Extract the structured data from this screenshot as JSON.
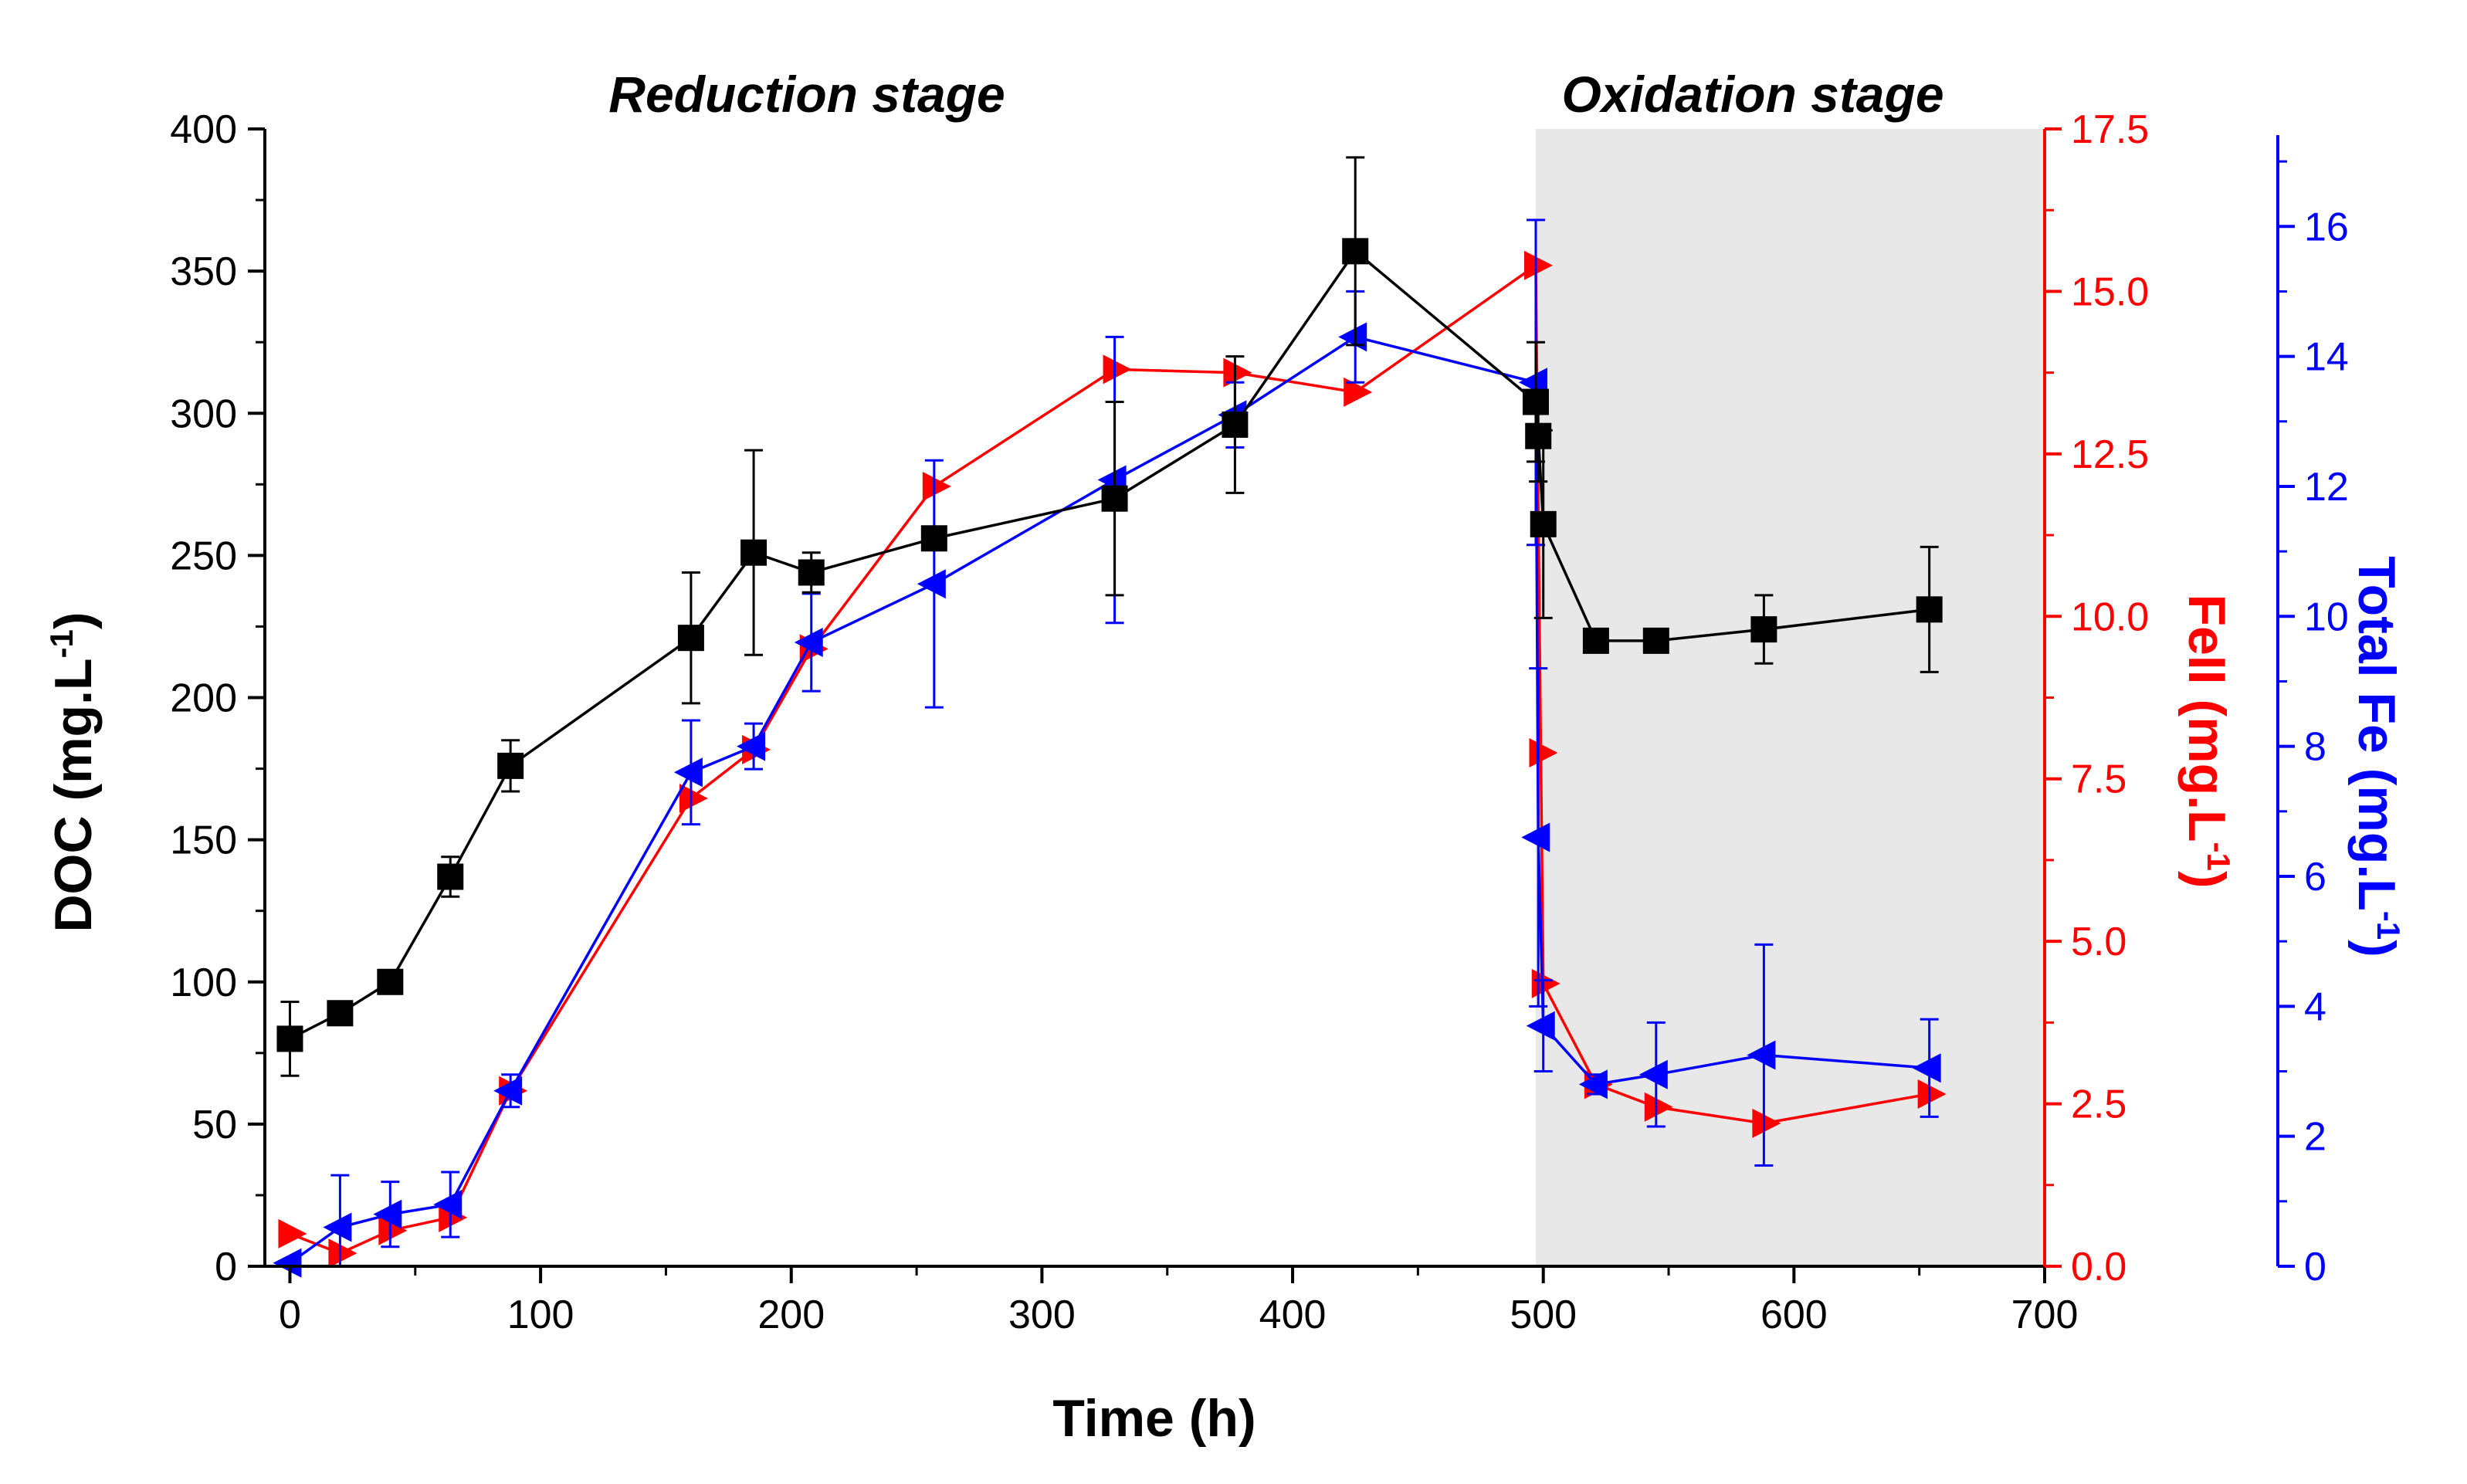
{
  "chart_data": {
    "type": "line",
    "xlabel": "Time (h)",
    "xlim": [
      -10,
      700
    ],
    "xticks": [
      0,
      100,
      200,
      300,
      400,
      500,
      600,
      700
    ],
    "stage_labels": {
      "reduction": "Reduction stage",
      "oxidation": "Oxidation stage"
    },
    "oxidation_region": {
      "x_start": 497,
      "x_end": 700,
      "color": "#e8e8e8"
    },
    "axes": {
      "left": {
        "label_main": "DOC (mg.L",
        "label_sup": "-1",
        "label_end": ")",
        "range": [
          0,
          400
        ],
        "ticks": [
          "0",
          "50",
          "100",
          "150",
          "200",
          "250",
          "300",
          "350",
          "400"
        ],
        "color": "#000000"
      },
      "right1": {
        "label_main": "FeII (mg.L",
        "label_sup": "-1",
        "label_end": ")",
        "range": [
          0,
          17.5
        ],
        "ticks": [
          "0.0",
          "2.5",
          "5.0",
          "7.5",
          "10.0",
          "12.5",
          "15.0",
          "17.5"
        ],
        "color": "#ff0000"
      },
      "right2": {
        "label_main": "Total Fe (mg.L",
        "label_sup": "-1",
        "label_end": ")",
        "range": [
          0,
          17.5
        ],
        "ticks": [
          "0",
          "2",
          "4",
          "6",
          "8",
          "10",
          "12",
          "14",
          "16"
        ],
        "color": "#0000ff"
      }
    },
    "series": [
      {
        "name": "DOC",
        "axis": "left",
        "color": "#000000",
        "marker": "square",
        "points": [
          {
            "x": 0,
            "y": 80,
            "err": 13
          },
          {
            "x": 20,
            "y": 89,
            "err": 4
          },
          {
            "x": 40,
            "y": 100,
            "err": 2
          },
          {
            "x": 64,
            "y": 137,
            "err": 7
          },
          {
            "x": 88,
            "y": 176,
            "err": 9
          },
          {
            "x": 160,
            "y": 221,
            "err": 23
          },
          {
            "x": 185,
            "y": 251,
            "err": 36
          },
          {
            "x": 208,
            "y": 244,
            "err": 7
          },
          {
            "x": 257,
            "y": 256,
            "err": 3
          },
          {
            "x": 329,
            "y": 270,
            "err": 34
          },
          {
            "x": 377,
            "y": 296,
            "err": 24
          },
          {
            "x": 425,
            "y": 357,
            "err": 33
          },
          {
            "x": 497,
            "y": 304,
            "err": 21
          },
          {
            "x": 498,
            "y": 292,
            "err": 16
          },
          {
            "x": 500,
            "y": 261,
            "err": 33
          },
          {
            "x": 521,
            "y": 220,
            "err": 4
          },
          {
            "x": 545,
            "y": 220,
            "err": 2
          },
          {
            "x": 588,
            "y": 224,
            "err": 12
          },
          {
            "x": 654,
            "y": 231,
            "err": 22
          }
        ]
      },
      {
        "name": "FeII",
        "axis": "right1",
        "color": "#ff0000",
        "marker": "triangle-right",
        "points": [
          {
            "x": 0,
            "y": 0.5,
            "err": 0
          },
          {
            "x": 20,
            "y": 0.2,
            "err": 0
          },
          {
            "x": 40,
            "y": 0.55,
            "err": 0
          },
          {
            "x": 64,
            "y": 0.75,
            "err": 0
          },
          {
            "x": 88,
            "y": 2.7,
            "err": 0
          },
          {
            "x": 160,
            "y": 7.2,
            "err": 0
          },
          {
            "x": 185,
            "y": 7.95,
            "err": 0
          },
          {
            "x": 208,
            "y": 9.5,
            "err": 0
          },
          {
            "x": 257,
            "y": 12.0,
            "err": 0
          },
          {
            "x": 329,
            "y": 13.8,
            "err": 0
          },
          {
            "x": 377,
            "y": 13.75,
            "err": 0
          },
          {
            "x": 425,
            "y": 13.45,
            "err": 0
          },
          {
            "x": 497,
            "y": 15.4,
            "err": 0
          },
          {
            "x": 499,
            "y": 7.9,
            "err": 0
          },
          {
            "x": 500,
            "y": 4.35,
            "err": 0
          },
          {
            "x": 521,
            "y": 2.8,
            "err": 0
          },
          {
            "x": 545,
            "y": 2.45,
            "err": 0
          },
          {
            "x": 588,
            "y": 2.2,
            "err": 0
          },
          {
            "x": 654,
            "y": 2.65,
            "err": 0
          }
        ]
      },
      {
        "name": "Total Fe",
        "axis": "right2",
        "color": "#0000ff",
        "marker": "triangle-left",
        "points": [
          {
            "x": 0,
            "y": 0.05,
            "err": 0
          },
          {
            "x": 20,
            "y": 0.6,
            "err": 0.8
          },
          {
            "x": 40,
            "y": 0.8,
            "err": 0.5
          },
          {
            "x": 64,
            "y": 0.95,
            "err": 0.5
          },
          {
            "x": 88,
            "y": 2.7,
            "err": 0.25
          },
          {
            "x": 160,
            "y": 7.6,
            "err": 0.8
          },
          {
            "x": 185,
            "y": 8.0,
            "err": 0.35
          },
          {
            "x": 208,
            "y": 9.6,
            "err": 0.75
          },
          {
            "x": 257,
            "y": 10.5,
            "err": 1.9
          },
          {
            "x": 329,
            "y": 12.1,
            "err": 2.2
          },
          {
            "x": 377,
            "y": 13.1,
            "err": 0.5
          },
          {
            "x": 425,
            "y": 14.3,
            "err": 0.7
          },
          {
            "x": 497,
            "y": 13.6,
            "err": 2.5
          },
          {
            "x": 498,
            "y": 6.6,
            "err": 2.6
          },
          {
            "x": 500,
            "y": 3.7,
            "err": 0.7
          },
          {
            "x": 521,
            "y": 2.8,
            "err": 0.15
          },
          {
            "x": 545,
            "y": 2.95,
            "err": 0.8
          },
          {
            "x": 588,
            "y": 3.25,
            "err": 1.7
          },
          {
            "x": 654,
            "y": 3.05,
            "err": 0.75
          }
        ]
      }
    ]
  }
}
